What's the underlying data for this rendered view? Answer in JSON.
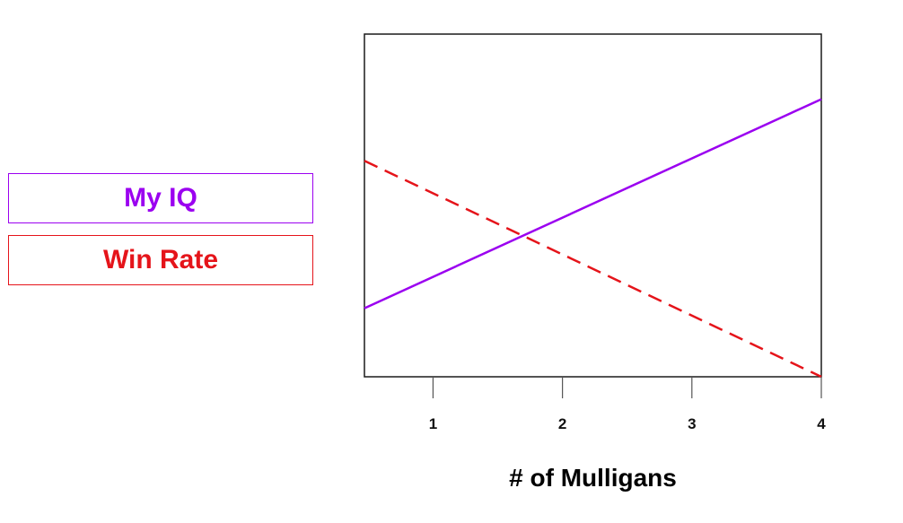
{
  "legend": {
    "items": [
      {
        "label": "My IQ",
        "color": "#9b00f0",
        "line_style": "solid"
      },
      {
        "label": "Win Rate",
        "color": "#e5141a",
        "line_style": "dashed"
      }
    ]
  },
  "chart_data": {
    "type": "line",
    "title": "",
    "xlabel": "# of Mulligans",
    "ylabel": "",
    "x_ticks": [
      "1",
      "2",
      "3",
      "4"
    ],
    "x_tick_values": [
      1,
      2,
      3,
      4
    ],
    "xlim": [
      0.47,
      4
    ],
    "ylim": [
      0,
      1
    ],
    "y_axis_visible": false,
    "grid": false,
    "legend_position": "left",
    "series": [
      {
        "name": "My IQ",
        "color": "#9b00f0",
        "dash": "solid",
        "x": [
          0.47,
          4
        ],
        "y": [
          0.2,
          0.81
        ]
      },
      {
        "name": "Win Rate",
        "color": "#e5141a",
        "dash": "dashed",
        "x": [
          0.47,
          4
        ],
        "y": [
          0.63,
          0.0
        ]
      }
    ]
  }
}
